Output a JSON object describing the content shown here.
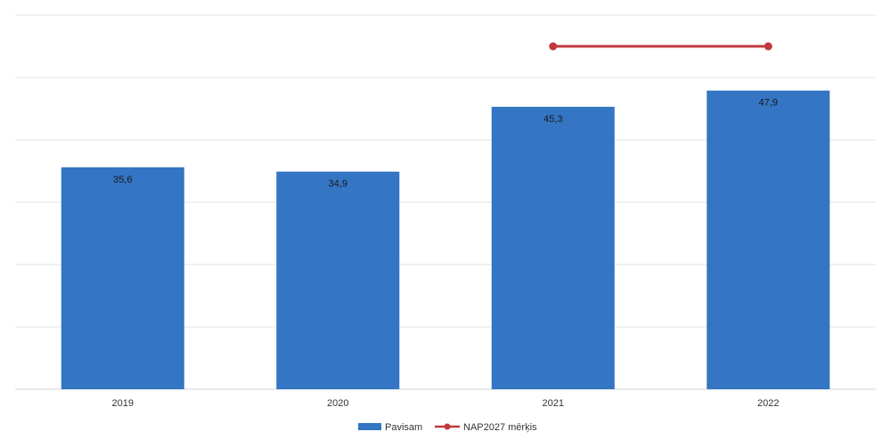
{
  "chart_data": {
    "type": "bar",
    "categories": [
      "2019",
      "2020",
      "2021",
      "2022"
    ],
    "series": [
      {
        "name": "Pavisam",
        "type": "bar",
        "values": [
          35.6,
          34.9,
          45.3,
          47.9
        ],
        "color": "#3475c4"
      },
      {
        "name": "NAP2027 mērķis",
        "type": "line",
        "values": [
          null,
          null,
          55,
          55
        ],
        "color": "#c0393e"
      }
    ],
    "data_labels": [
      "35,6",
      "34,9",
      "45,3",
      "47,9"
    ],
    "ylim": [
      0,
      60
    ],
    "grid": true,
    "legend": "bottom"
  }
}
